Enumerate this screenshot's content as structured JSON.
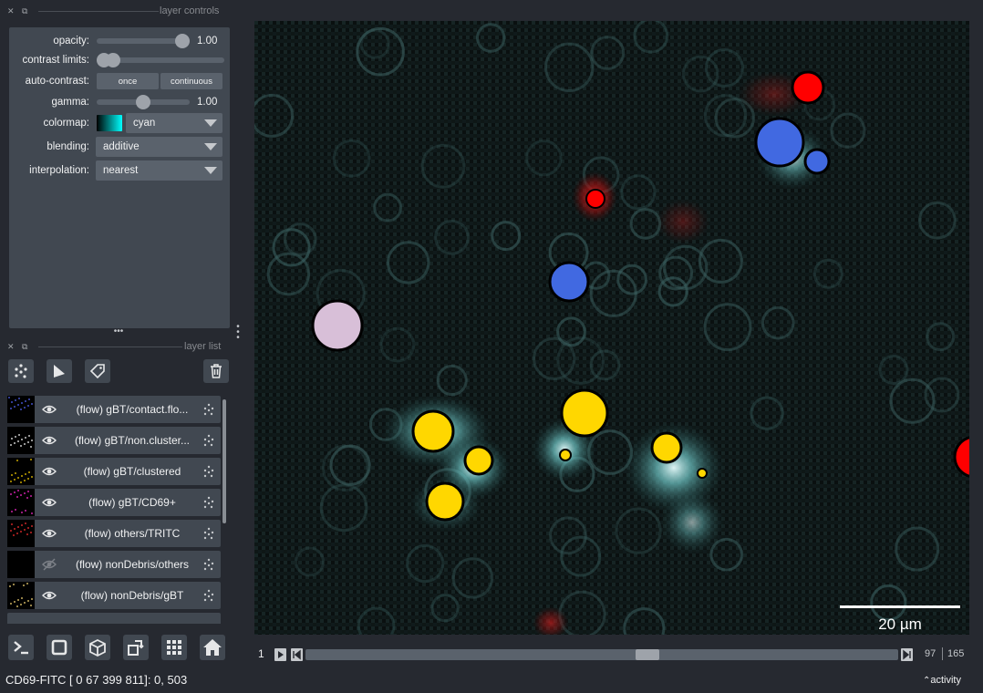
{
  "panels": {
    "controls_title": "layer controls",
    "list_title": "layer list"
  },
  "controls": {
    "opacity": {
      "label": "opacity:",
      "value": "1.00",
      "level": 1.0
    },
    "contrast": {
      "label": "contrast limits:"
    },
    "auto_contrast": {
      "label": "auto-contrast:",
      "once": "once",
      "continuous": "continuous"
    },
    "gamma": {
      "label": "gamma:",
      "value": "1.00",
      "level": 0.5
    },
    "colormap": {
      "label": "colormap:",
      "value": "cyan"
    },
    "blending": {
      "label": "blending:",
      "value": "additive"
    },
    "interpolation": {
      "label": "interpolation:",
      "value": "nearest"
    }
  },
  "layer_tools": {
    "points": "points-icon",
    "shapes": "shapes-icon",
    "labels": "labels-icon",
    "delete": "trash-icon"
  },
  "layers": [
    {
      "name": "(flow) gBT/contact.flo...",
      "visible": true,
      "thumb_color": "#5566ff"
    },
    {
      "name": "(flow) gBT/non.cluster...",
      "visible": true,
      "thumb_color": "#ffffff"
    },
    {
      "name": "(flow) gBT/clustered",
      "visible": true,
      "thumb_color": "#ffd400"
    },
    {
      "name": "(flow) gBT/CD69+",
      "visible": true,
      "thumb_color": "#ff2ad4"
    },
    {
      "name": "(flow) others/TRITC",
      "visible": true,
      "thumb_color": "#ff3030"
    },
    {
      "name": "(flow) nonDebris/others",
      "visible": false,
      "thumb_color": "#000000"
    },
    {
      "name": "(flow) nonDebris/gBT",
      "visible": true,
      "thumb_color": "#ffe07a"
    }
  ],
  "bottom_buttons": [
    "console-icon",
    "square-icon",
    "cube-icon",
    "rotate-icon",
    "grid-icon",
    "home-icon"
  ],
  "scale_bar": {
    "label": "20 µm"
  },
  "dims": {
    "current": "1",
    "position": "97",
    "total": "165",
    "fraction": 0.58
  },
  "status": {
    "text": "CD69-FITC [ 0  67 399 811]: 0, 503",
    "activity": "activity"
  },
  "colors": {
    "red": "#ff0000",
    "blue": "#4169e1",
    "yellow": "#ffd700",
    "pink": "#d8bfd8"
  }
}
